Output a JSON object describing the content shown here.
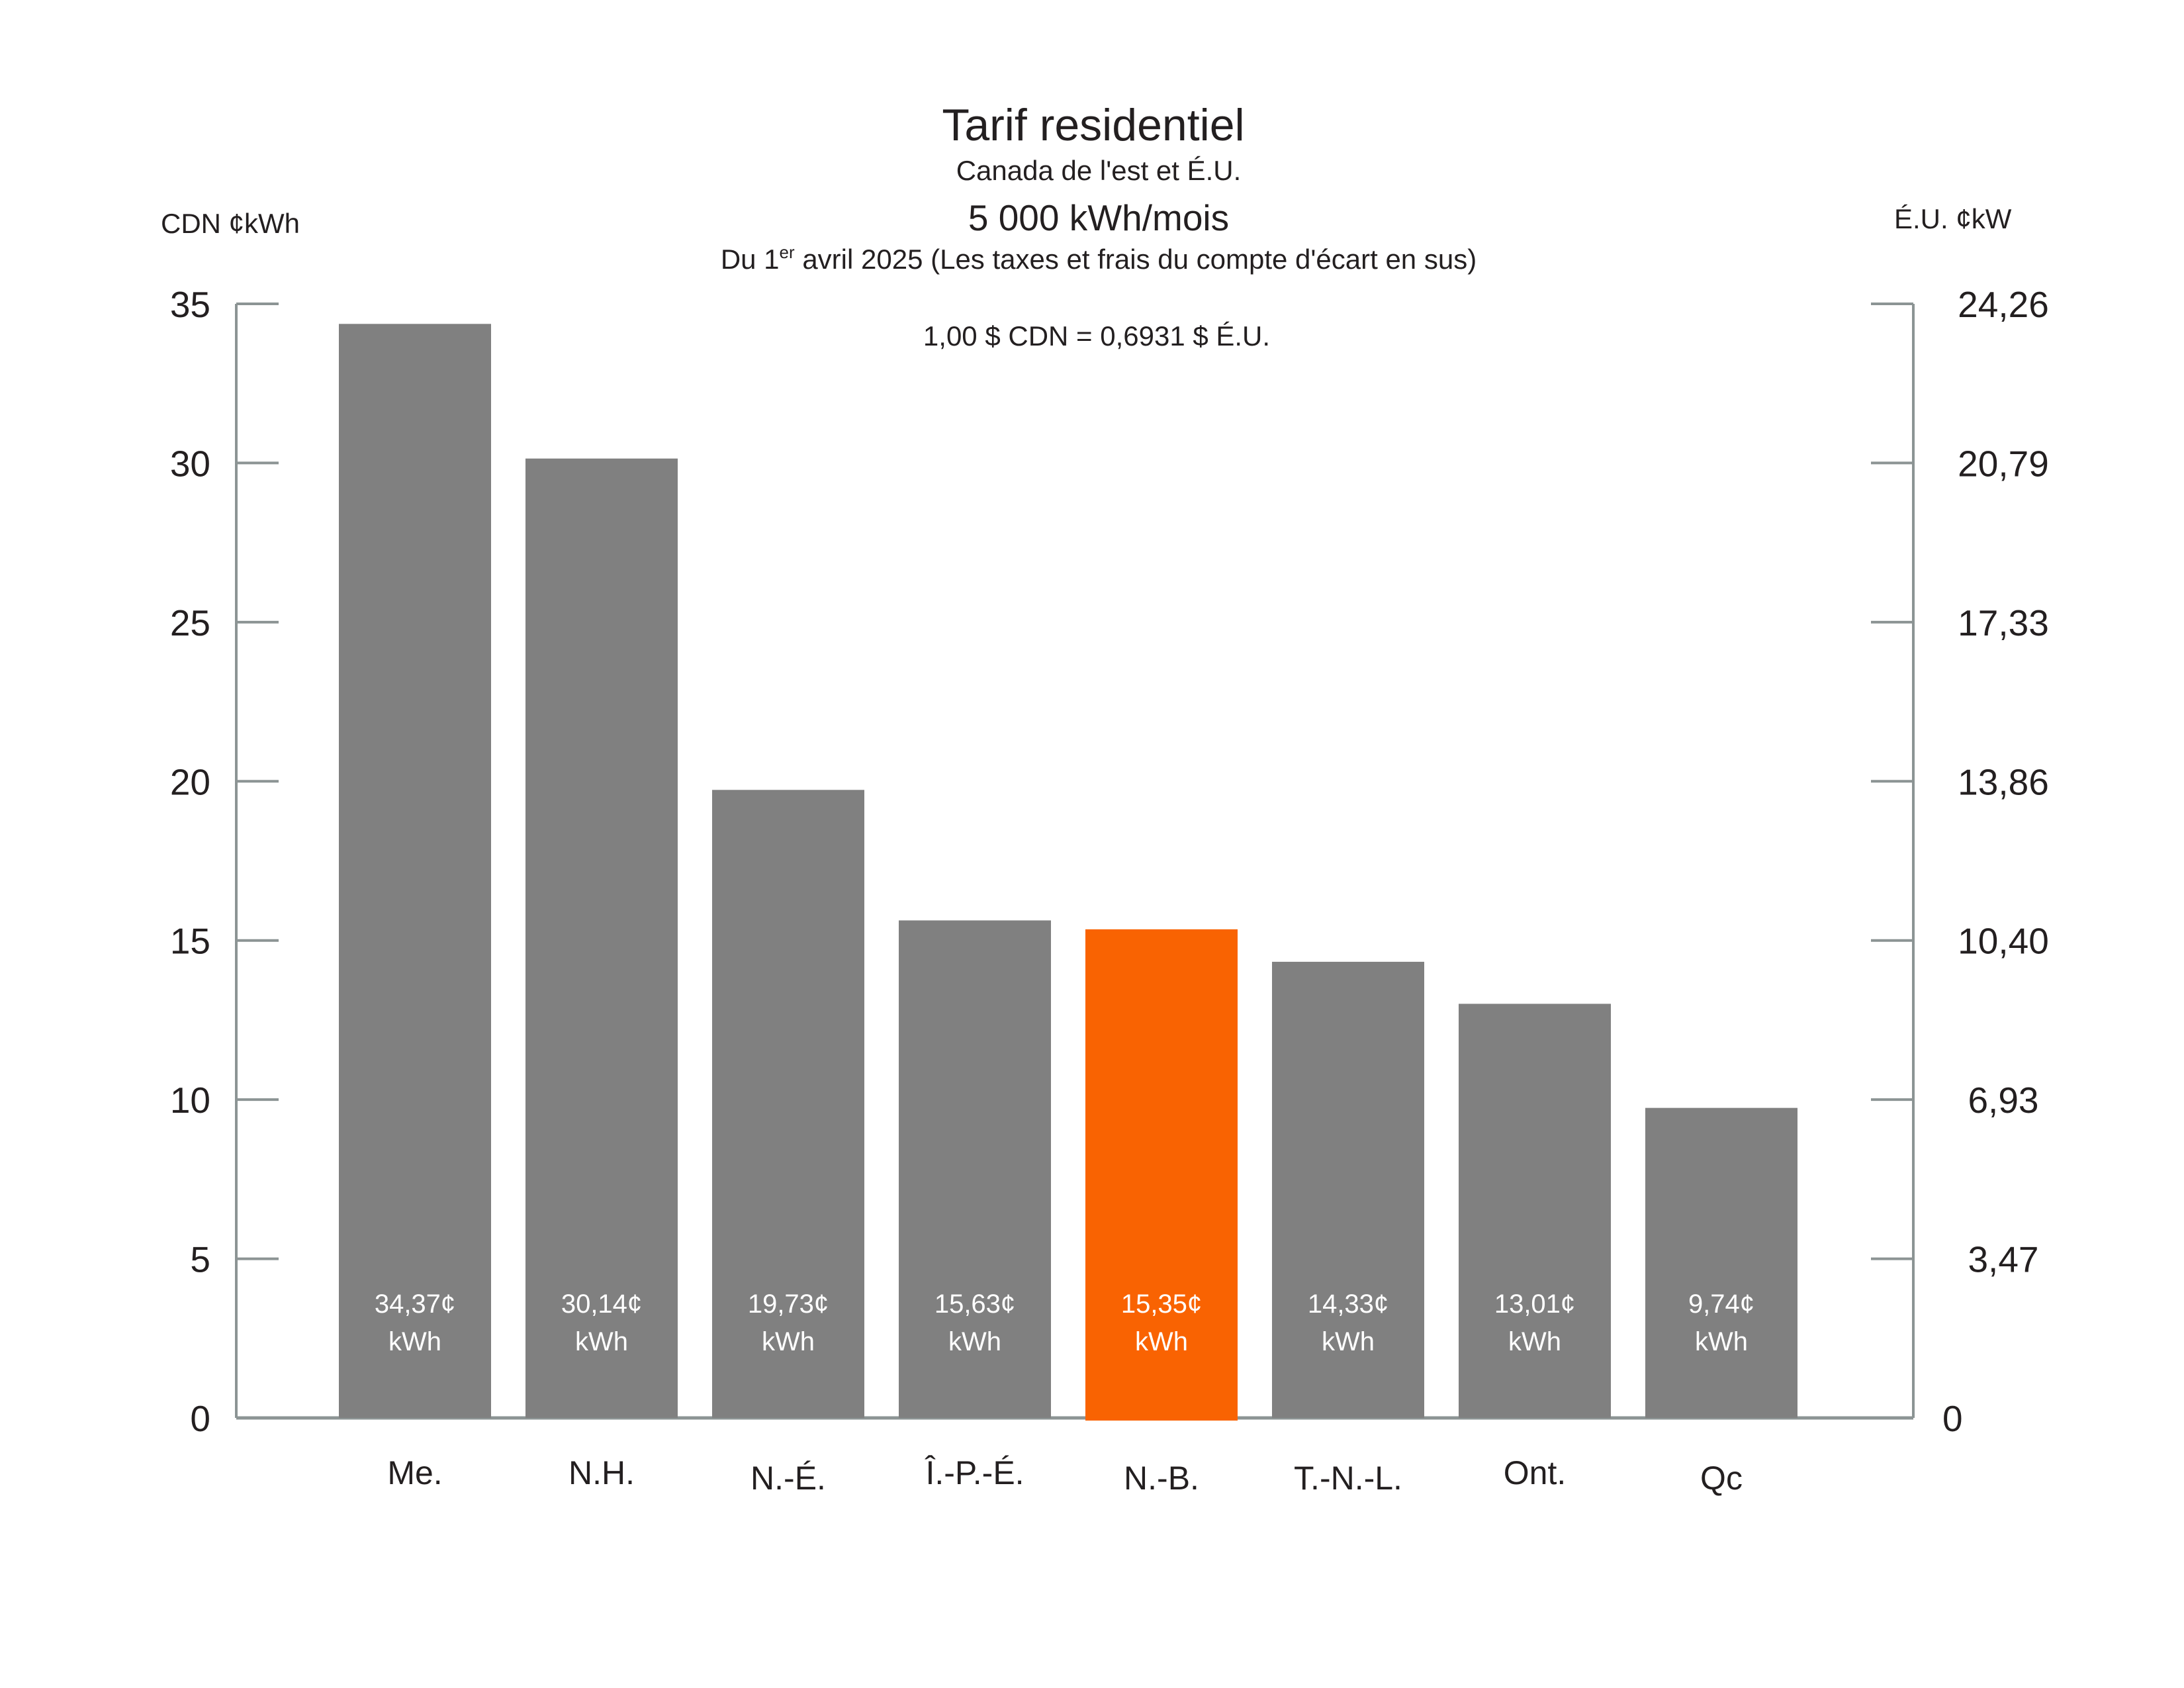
{
  "chart_data": {
    "type": "bar",
    "title": "Tarif residentiel",
    "subtitle": "Canada de l'est et É.U.",
    "subtitle2": "5 000 kWh/mois",
    "date_note_prefix": "Du 1",
    "date_note_sup": "er",
    "date_note_suffix": " avril 2025 (Les taxes et frais du compte d'écart en sus)",
    "exchange_note": "1,00 $ CDN = 0,6931 $ É.U.",
    "ylabel_left": "CDN ¢kWh",
    "ylabel_right": "É.U. ¢kW",
    "ylim": [
      0,
      35
    ],
    "yticks_left": [
      "0",
      "5",
      "10",
      "15",
      "20",
      "25",
      "30",
      "35"
    ],
    "yticks_right": [
      "0",
      "3,47",
      "6,93",
      "10,40",
      "13,86",
      "17,33",
      "20,79",
      "24,26"
    ],
    "categories": [
      "Me.",
      "N.H.",
      "N.-É.",
      "Î.-P.-É.",
      "N.-B.",
      "T.-N.-L.",
      "Ont.",
      "Qc"
    ],
    "values": [
      34.37,
      30.14,
      19.73,
      15.63,
      15.35,
      14.33,
      13.01,
      9.74
    ],
    "data_labels": [
      "34,37¢",
      "30,14¢",
      "19,73¢",
      "15,63¢",
      "15,35¢",
      "14,33¢",
      "13,01¢",
      "9,74¢"
    ],
    "data_label_unit": "kWh",
    "highlight_index": 4,
    "grid": false,
    "colors": {
      "bar": "#808080",
      "highlight": "#F96302",
      "axis": "#8c9494",
      "text": "#231f20",
      "label": "#ffffff"
    }
  }
}
